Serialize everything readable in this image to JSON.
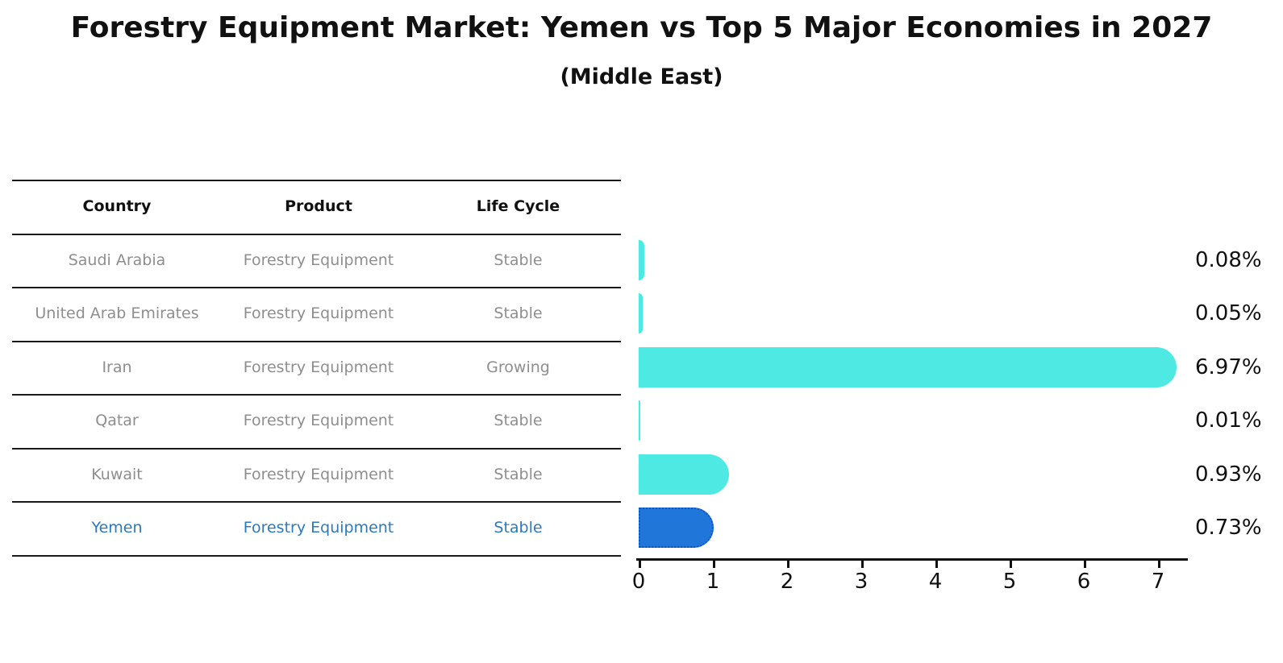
{
  "title": "Forestry Equipment Market: Yemen vs Top 5 Major Economies in 2027",
  "subtitle": "(Middle East)",
  "table": {
    "headers": [
      "Country",
      "Product",
      "Life Cycle"
    ],
    "rows": [
      {
        "country": "Saudi Arabia",
        "product": "Forestry Equipment",
        "life_cycle": "Stable",
        "highlighted": false
      },
      {
        "country": "United Arab Emirates",
        "product": "Forestry Equipment",
        "life_cycle": "Stable",
        "highlighted": false
      },
      {
        "country": "Iran",
        "product": "Forestry Equipment",
        "life_cycle": "Growing",
        "highlighted": false
      },
      {
        "country": "Qatar",
        "product": "Forestry Equipment",
        "life_cycle": "Stable",
        "highlighted": false
      },
      {
        "country": "Kuwait",
        "product": "Forestry Equipment",
        "life_cycle": "Stable",
        "highlighted": false
      },
      {
        "country": "Yemen",
        "product": "Forestry Equipment",
        "life_cycle": "Stable",
        "highlighted": true
      }
    ]
  },
  "chart_data": {
    "type": "bar",
    "orientation": "horizontal",
    "title": "Forestry Equipment Market: Yemen vs Top 5 Major Economies in 2027 (Middle East)",
    "categories": [
      "Saudi Arabia",
      "United Arab Emirates",
      "Iran",
      "Qatar",
      "Kuwait",
      "Yemen"
    ],
    "values": [
      0.08,
      0.05,
      6.97,
      0.01,
      0.93,
      0.73
    ],
    "value_labels": [
      "0.08%",
      "0.05%",
      "6.97%",
      "0.01%",
      "0.93%",
      "0.73%"
    ],
    "unit": "%",
    "xlabel": "",
    "ylabel": "",
    "xlim": [
      0,
      7.4
    ],
    "x_ticks": [
      0,
      1,
      2,
      3,
      4,
      5,
      6,
      7
    ],
    "grid": false,
    "legend": false,
    "highlight_category": "Yemen",
    "colors": {
      "bar_default": "#4de9e2",
      "bar_highlight": "#2176d9",
      "bar_highlight_border": "#0d54be",
      "highlight_text": "#2b7abd",
      "table_text": "#8e8e8e",
      "header_text": "#111111",
      "axis": "#111111"
    }
  }
}
